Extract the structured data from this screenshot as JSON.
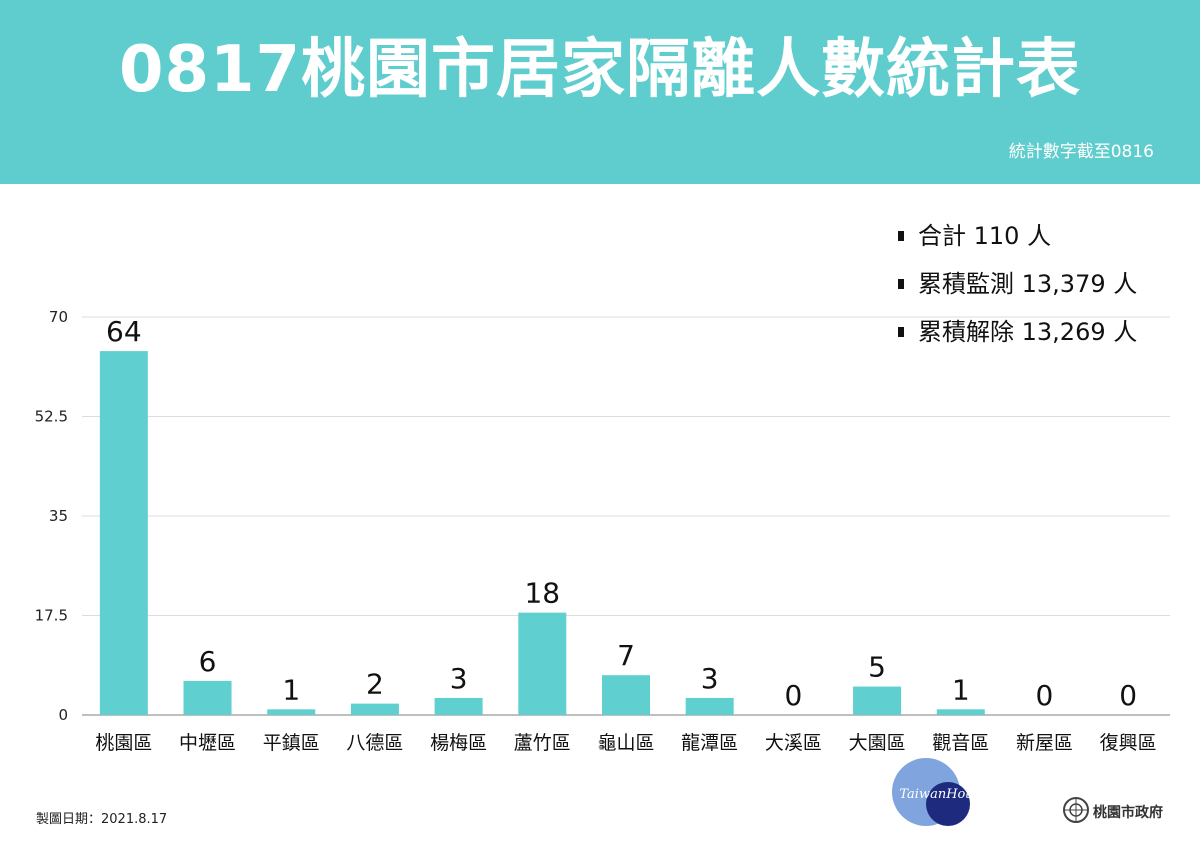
{
  "header": {
    "title": "0817桃園市居家隔離人數統計表",
    "subtitle": "統計數字截至0816",
    "background_color": "#5fcdcd"
  },
  "summary": [
    {
      "label": "合計 110 人"
    },
    {
      "label": "累積監測 13,379 人"
    },
    {
      "label": "累積解除 13,269 人"
    }
  ],
  "chart_data": {
    "type": "bar",
    "categories": [
      "桃園區",
      "中壢區",
      "平鎮區",
      "八德區",
      "楊梅區",
      "蘆竹區",
      "龜山區",
      "龍潭區",
      "大溪區",
      "大園區",
      "觀音區",
      "新屋區",
      "復興區"
    ],
    "values": [
      64,
      6,
      1,
      2,
      3,
      18,
      7,
      3,
      0,
      5,
      1,
      0,
      0
    ],
    "ylim": [
      0,
      70
    ],
    "yticks": [
      "0",
      "17.5",
      "35",
      "52.5",
      "70"
    ],
    "grid": true,
    "bar_color": "#5fcfcf",
    "show_data_labels": true
  },
  "footer": {
    "date_text": "製圖日期：2021.8.17",
    "org_text": "桃園市政府",
    "watermark": "TaiwanHot"
  }
}
